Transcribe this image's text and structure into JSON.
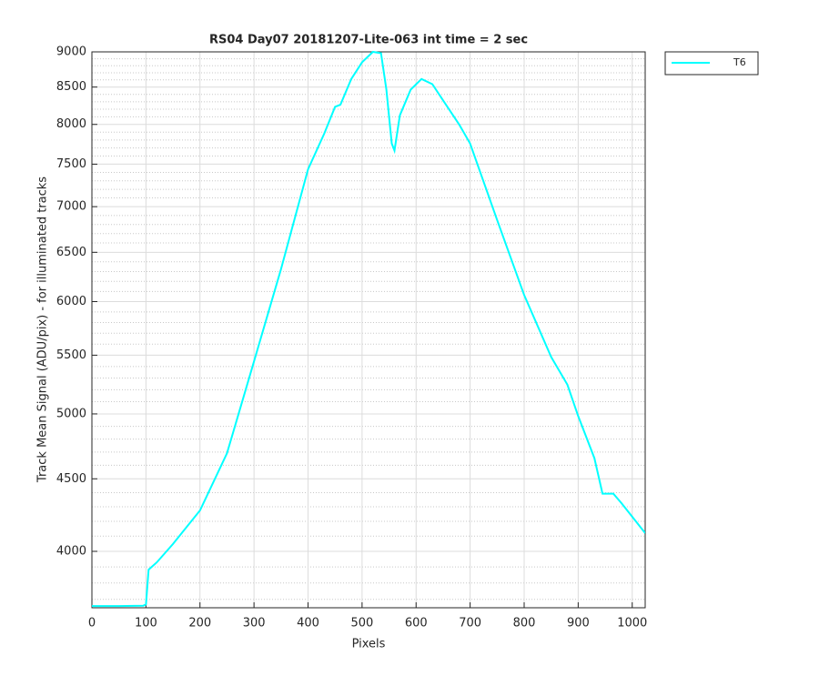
{
  "chart_data": {
    "type": "line",
    "title": "RS04 Day07 20181207-Lite-063 int time = 2 sec",
    "x_label": "Pixels",
    "y_label": "Track Mean Signal (ADU/pix) - for illuminated tracks",
    "y_scale": "log",
    "grid": true,
    "minor_grid": true,
    "legend_position": "outside-right",
    "xlim": [
      0,
      1024
    ],
    "xticks": [
      0,
      100,
      200,
      300,
      400,
      500,
      600,
      700,
      800,
      900,
      1000
    ],
    "ylim": [
      3650,
      9000
    ],
    "yticks": [
      4000,
      4500,
      5000,
      5500,
      6000,
      6500,
      7000,
      7500,
      8000,
      8500,
      9000
    ],
    "x": [
      0,
      50,
      95,
      100,
      105,
      120,
      150,
      200,
      250,
      300,
      350,
      400,
      430,
      450,
      460,
      480,
      500,
      520,
      535,
      545,
      555,
      560,
      570,
      590,
      610,
      630,
      650,
      680,
      700,
      750,
      800,
      850,
      880,
      900,
      930,
      945,
      965,
      980,
      1000,
      1024
    ],
    "series": [
      {
        "name": "T6",
        "color": "#00ffff",
        "values": [
          3660,
          3660,
          3662,
          3670,
          3883,
          3929,
          4048,
          4275,
          4690,
          5444,
          6325,
          7437,
          7881,
          8232,
          8260,
          8612,
          8850,
          9000,
          8980,
          8465,
          7755,
          7667,
          8118,
          8465,
          8612,
          8540,
          8319,
          7995,
          7755,
          6850,
          6064,
          5484,
          5243,
          4982,
          4653,
          4393,
          4393,
          4326,
          4231,
          4120
        ]
      }
    ]
  }
}
